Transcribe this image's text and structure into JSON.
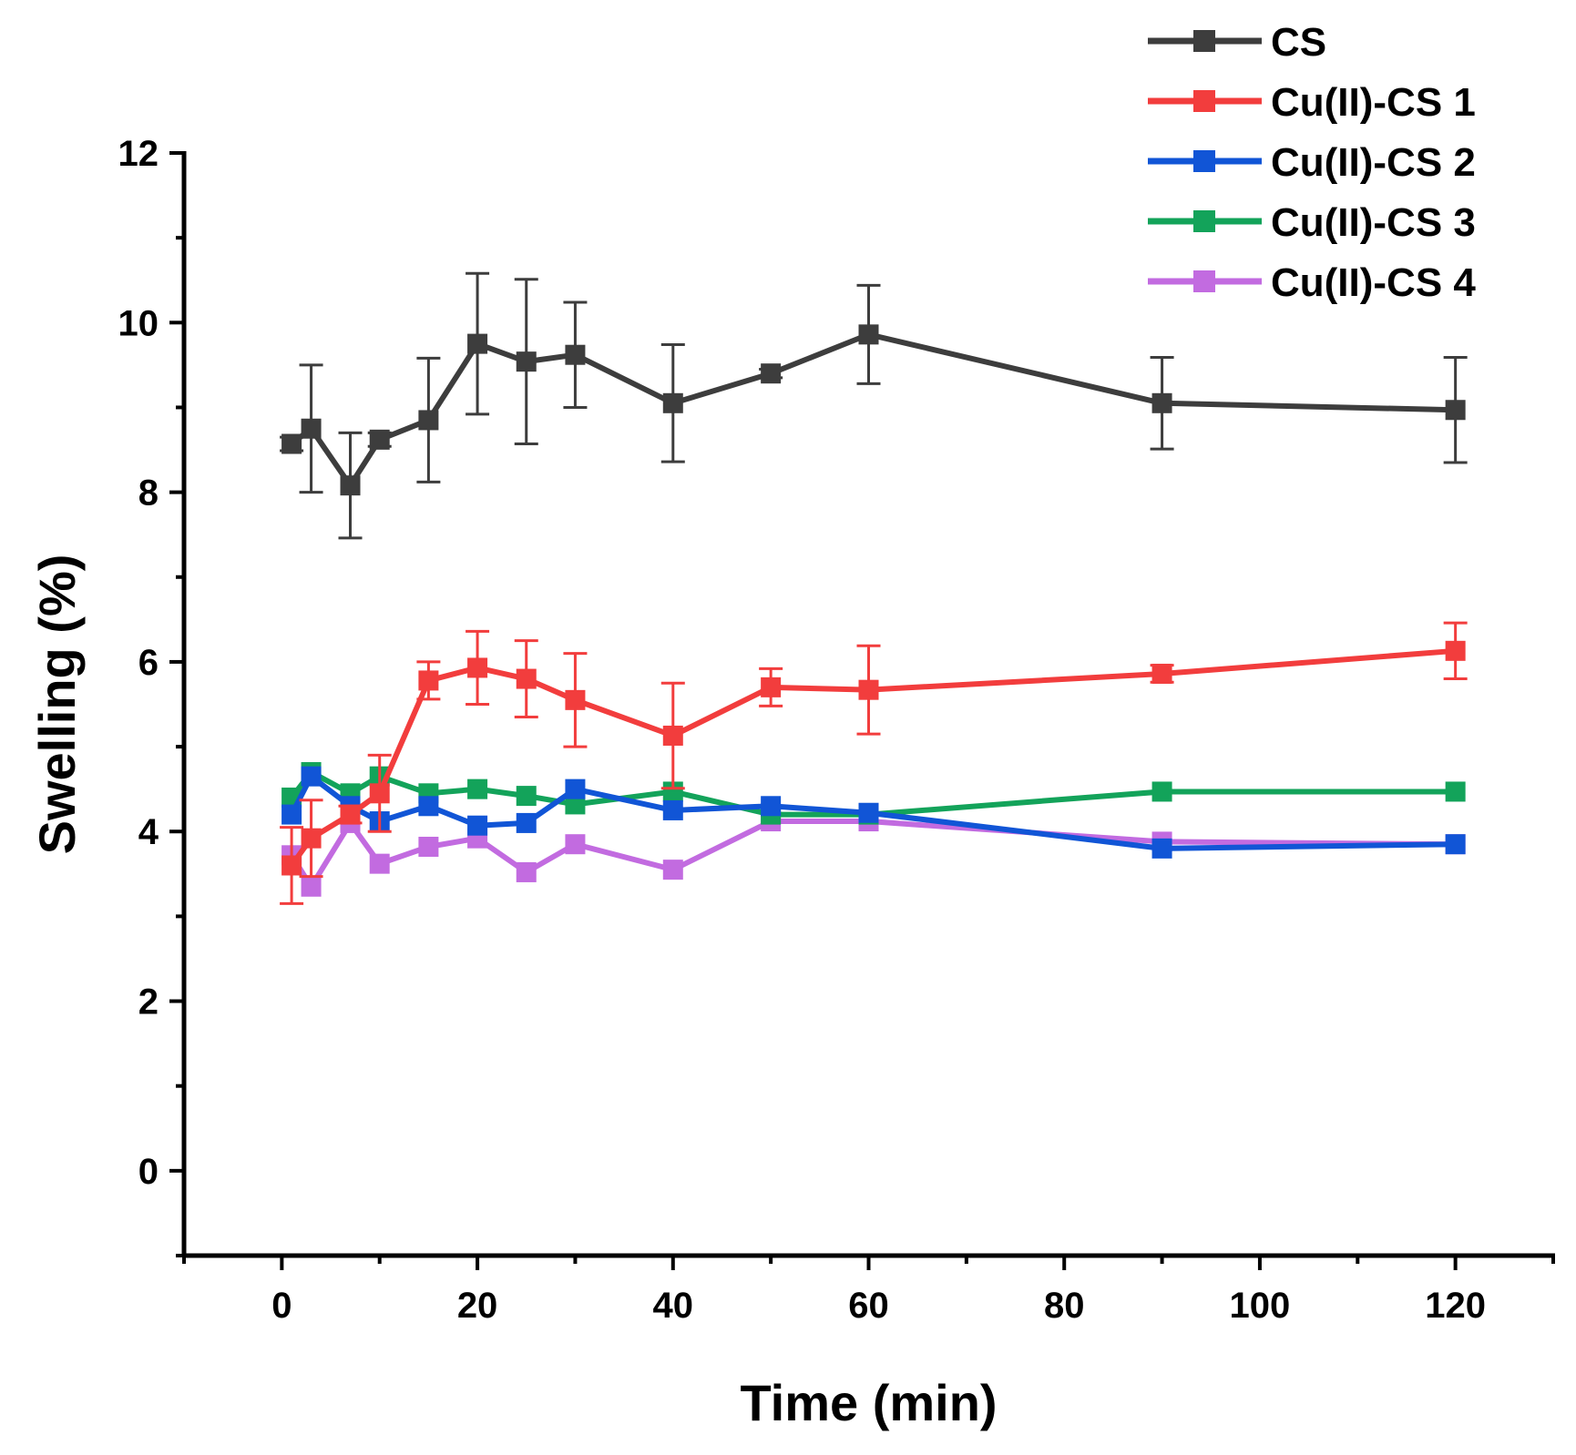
{
  "chart_data": {
    "type": "line",
    "xlabel": "Time (min)",
    "ylabel": "Swelling (%)",
    "xlim": [
      -10,
      130
    ],
    "ylim": [
      -1,
      12
    ],
    "xticks": [
      0,
      20,
      40,
      60,
      80,
      100,
      120
    ],
    "yticks": [
      0,
      2,
      4,
      6,
      8,
      10,
      12
    ],
    "grid": false,
    "legend_position": "top-right",
    "marker": "square",
    "x": [
      1,
      3,
      7,
      10,
      15,
      20,
      25,
      30,
      40,
      50,
      60,
      90,
      120
    ],
    "series": [
      {
        "name": "CS",
        "color": "#3d3d3d",
        "values": [
          8.57,
          8.75,
          8.08,
          8.62,
          8.85,
          9.75,
          9.54,
          9.62,
          9.05,
          9.4,
          9.86,
          9.05,
          8.97
        ],
        "errors": [
          0.08,
          0.75,
          0.62,
          0.08,
          0.73,
          0.83,
          0.97,
          0.62,
          0.69,
          0.05,
          0.58,
          0.54,
          0.62
        ]
      },
      {
        "name": "Cu(II)-CS 1",
        "color": "#f23d3d",
        "values": [
          3.6,
          3.92,
          4.2,
          4.45,
          5.78,
          5.93,
          5.8,
          5.55,
          5.13,
          5.7,
          5.67,
          5.86,
          6.13
        ],
        "errors": [
          0.45,
          0.45,
          0.1,
          0.45,
          0.22,
          0.43,
          0.45,
          0.55,
          0.62,
          0.22,
          0.52,
          0.1,
          0.33
        ]
      },
      {
        "name": "Cu(II)-CS 2",
        "color": "#1155d6",
        "values": [
          4.2,
          4.65,
          4.3,
          4.12,
          4.3,
          4.07,
          4.1,
          4.5,
          4.25,
          4.3,
          4.22,
          3.8,
          3.85
        ]
      },
      {
        "name": "Cu(II)-CS 3",
        "color": "#13a35a",
        "values": [
          4.4,
          4.7,
          4.45,
          4.65,
          4.45,
          4.5,
          4.42,
          4.32,
          4.47,
          4.2,
          4.2,
          4.47,
          4.47
        ]
      },
      {
        "name": "Cu(II)-CS 4",
        "color": "#c26be0",
        "values": [
          3.72,
          3.35,
          4.1,
          3.62,
          3.82,
          3.92,
          3.52,
          3.85,
          3.55,
          4.12,
          4.12,
          3.88,
          3.85
        ]
      }
    ]
  }
}
